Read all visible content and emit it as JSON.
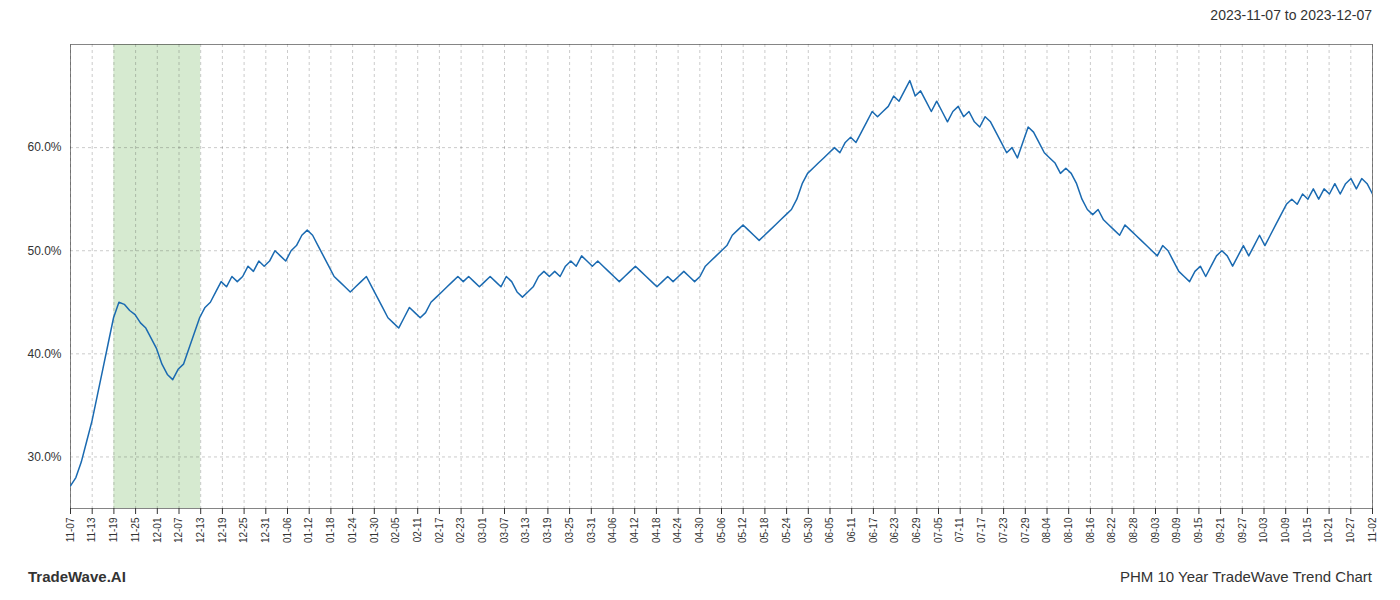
{
  "chart_data": {
    "type": "line",
    "title": "2023-11-07 to 2023-12-07",
    "annotations": [
      {
        "text": "TradeWave.AI"
      },
      {
        "text": "PHM 10 Year TradeWave Trend Chart"
      }
    ],
    "color": "#1a6ab1",
    "grid": true,
    "ylim": [
      25.0,
      70.0
    ],
    "yticks": [
      {
        "value": 30.0,
        "label": "30.0%"
      },
      {
        "value": 40.0,
        "label": "40.0%"
      },
      {
        "value": 50.0,
        "label": "50.0%"
      },
      {
        "value": 60.0,
        "label": "60.0%"
      }
    ],
    "xlim": [
      0,
      242
    ],
    "xticks": [
      {
        "value": 0,
        "label": "11-07"
      },
      {
        "value": 4.033333333333333,
        "label": "11-13"
      },
      {
        "value": 8.066666666666666,
        "label": "11-19"
      },
      {
        "value": 12.1,
        "label": "11-25"
      },
      {
        "value": 16.133333333333333,
        "label": "12-01"
      },
      {
        "value": 20.166666666666668,
        "label": "12-07"
      },
      {
        "value": 24.2,
        "label": "12-13"
      },
      {
        "value": 28.233333333333334,
        "label": "12-19"
      },
      {
        "value": 32.266666666666666,
        "label": "12-25"
      },
      {
        "value": 36.3,
        "label": "12-31"
      },
      {
        "value": 40.333333333333336,
        "label": "01-06"
      },
      {
        "value": 44.36666666666667,
        "label": "01-12"
      },
      {
        "value": 48.4,
        "label": "01-18"
      },
      {
        "value": 52.43333333333333,
        "label": "01-24"
      },
      {
        "value": 56.46666666666667,
        "label": "01-30"
      },
      {
        "value": 60.5,
        "label": "02-05"
      },
      {
        "value": 64.53333333333333,
        "label": "02-11"
      },
      {
        "value": 68.56666666666666,
        "label": "02-17"
      },
      {
        "value": 72.6,
        "label": "02-23"
      },
      {
        "value": 76.63333333333334,
        "label": "03-01"
      },
      {
        "value": 80.66666666666667,
        "label": "03-07"
      },
      {
        "value": 84.7,
        "label": "03-13"
      },
      {
        "value": 88.73333333333333,
        "label": "03-19"
      },
      {
        "value": 92.76666666666667,
        "label": "03-25"
      },
      {
        "value": 96.8,
        "label": "03-31"
      },
      {
        "value": 100.83333333333333,
        "label": "04-06"
      },
      {
        "value": 104.86666666666666,
        "label": "04-12"
      },
      {
        "value": 108.9,
        "label": "04-18"
      },
      {
        "value": 112.93333333333334,
        "label": "04-24"
      },
      {
        "value": 116.96666666666667,
        "label": "04-30"
      },
      {
        "value": 121,
        "label": "05-06"
      },
      {
        "value": 125.03333333333333,
        "label": "05-12"
      },
      {
        "value": 129.06666666666666,
        "label": "05-18"
      },
      {
        "value": 133.1,
        "label": "05-24"
      },
      {
        "value": 137.13333333333333,
        "label": "05-30"
      },
      {
        "value": 141.16666666666666,
        "label": "06-05"
      },
      {
        "value": 145.2,
        "label": "06-11"
      },
      {
        "value": 149.23333333333332,
        "label": "06-17"
      },
      {
        "value": 153.26666666666668,
        "label": "06-23"
      },
      {
        "value": 157.3,
        "label": "06-29"
      },
      {
        "value": 161.33333333333334,
        "label": "07-05"
      },
      {
        "value": 165.36666666666667,
        "label": "07-11"
      },
      {
        "value": 169.4,
        "label": "07-17"
      },
      {
        "value": 173.43333333333334,
        "label": "07-23"
      },
      {
        "value": 177.46666666666667,
        "label": "07-29"
      },
      {
        "value": 181.5,
        "label": "08-04"
      },
      {
        "value": 185.53333333333333,
        "label": "08-10"
      },
      {
        "value": 189.56666666666666,
        "label": "08-16"
      },
      {
        "value": 193.6,
        "label": "08-22"
      },
      {
        "value": 197.63333333333333,
        "label": "08-28"
      },
      {
        "value": 201.66666666666666,
        "label": "09-03"
      },
      {
        "value": 205.7,
        "label": "09-09"
      },
      {
        "value": 209.73333333333332,
        "label": "09-15"
      },
      {
        "value": 213.76666666666668,
        "label": "09-21"
      },
      {
        "value": 217.8,
        "label": "09-27"
      },
      {
        "value": 221.83333333333334,
        "label": "10-03"
      },
      {
        "value": 225.86666666666667,
        "label": "10-09"
      },
      {
        "value": 229.9,
        "label": "10-15"
      },
      {
        "value": 233.93333333333334,
        "label": "10-21"
      },
      {
        "value": 237.96666666666667,
        "label": "10-27"
      },
      {
        "value": 242,
        "label": "11-02"
      }
    ],
    "shaded": {
      "from": "11-19",
      "to": "12-13",
      "color": "#d6ead0"
    },
    "values": [
      27.2,
      28.0,
      29.5,
      31.5,
      33.5,
      36.0,
      38.5,
      41.0,
      43.5,
      45.0,
      44.8,
      44.2,
      43.8,
      43.0,
      42.5,
      41.5,
      40.5,
      39.0,
      38.0,
      37.5,
      38.5,
      39.0,
      40.5,
      42.0,
      43.5,
      44.5,
      45.0,
      46.0,
      47.0,
      46.5,
      47.5,
      47.0,
      47.5,
      48.5,
      48.0,
      49.0,
      48.5,
      49.0,
      50.0,
      49.5,
      49.0,
      50.0,
      50.5,
      51.5,
      52.0,
      51.5,
      50.5,
      49.5,
      48.5,
      47.5,
      47.0,
      46.5,
      46.0,
      46.5,
      47.0,
      47.5,
      46.5,
      45.5,
      44.5,
      43.5,
      43.0,
      42.5,
      43.5,
      44.5,
      44.0,
      43.5,
      44.0,
      45.0,
      45.5,
      46.0,
      46.5,
      47.0,
      47.5,
      47.0,
      47.5,
      47.0,
      46.5,
      47.0,
      47.5,
      47.0,
      46.5,
      47.5,
      47.0,
      46.0,
      45.5,
      46.0,
      46.5,
      47.5,
      48.0,
      47.5,
      48.0,
      47.5,
      48.5,
      49.0,
      48.5,
      49.5,
      49.0,
      48.5,
      49.0,
      48.5,
      48.0,
      47.5,
      47.0,
      47.5,
      48.0,
      48.5,
      48.0,
      47.5,
      47.0,
      46.5,
      47.0,
      47.5,
      47.0,
      47.5,
      48.0,
      47.5,
      47.0,
      47.5,
      48.5,
      49.0,
      49.5,
      50.0,
      50.5,
      51.5,
      52.0,
      52.5,
      52.0,
      51.5,
      51.0,
      51.5,
      52.0,
      52.5,
      53.0,
      53.5,
      54.0,
      55.0,
      56.5,
      57.5,
      58.0,
      58.5,
      59.0,
      59.5,
      60.0,
      59.5,
      60.5,
      61.0,
      60.5,
      61.5,
      62.5,
      63.5,
      63.0,
      63.5,
      64.0,
      65.0,
      64.5,
      65.5,
      66.5,
      65.0,
      65.5,
      64.5,
      63.5,
      64.5,
      63.5,
      62.5,
      63.5,
      64.0,
      63.0,
      63.5,
      62.5,
      62.0,
      63.0,
      62.5,
      61.5,
      60.5,
      59.5,
      60.0,
      59.0,
      60.5,
      62.0,
      61.5,
      60.5,
      59.5,
      59.0,
      58.5,
      57.5,
      58.0,
      57.5,
      56.5,
      55.0,
      54.0,
      53.5,
      54.0,
      53.0,
      52.5,
      52.0,
      51.5,
      52.5,
      52.0,
      51.5,
      51.0,
      50.5,
      50.0,
      49.5,
      50.5,
      50.0,
      49.0,
      48.0,
      47.5,
      47.0,
      48.0,
      48.5,
      47.5,
      48.5,
      49.5,
      50.0,
      49.5,
      48.5,
      49.5,
      50.5,
      49.5,
      50.5,
      51.5,
      50.5,
      51.5,
      52.5,
      53.5,
      54.5,
      55.0,
      54.5,
      55.5,
      55.0,
      56.0,
      55.0,
      56.0,
      55.5,
      56.5,
      55.5,
      56.5,
      57.0,
      56.0,
      57.0,
      56.5,
      55.5
    ]
  }
}
